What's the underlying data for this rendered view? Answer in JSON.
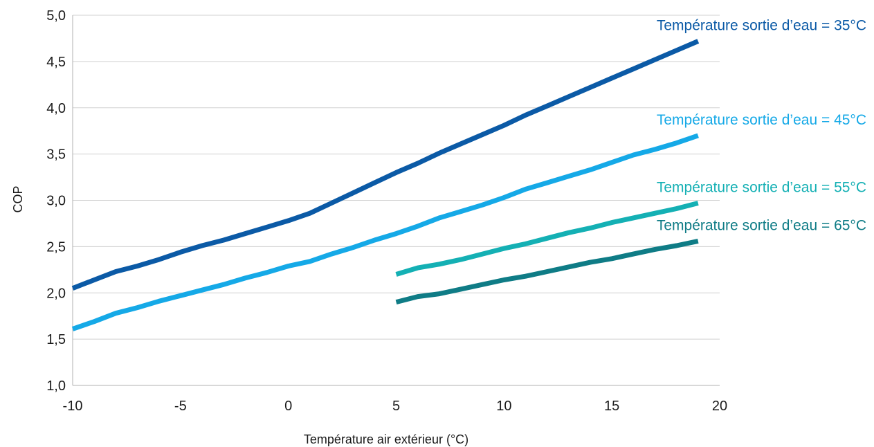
{
  "chart_data": {
    "type": "line",
    "title": "",
    "xlabel": "Température air extérieur (°C)",
    "ylabel": "COP",
    "xlim": [
      -10,
      20
    ],
    "ylim": [
      1.0,
      5.0
    ],
    "grid": "horizontal",
    "x_ticks": [
      "-10",
      "-5",
      "0",
      "5",
      "10",
      "15",
      "20"
    ],
    "y_ticks": [
      "1,0",
      "1,5",
      "2,0",
      "2,5",
      "3,0",
      "3,5",
      "4,0",
      "4,5",
      "5,0"
    ],
    "series": [
      {
        "name": "Température sortie d’eau = 35°C",
        "color": "#0b5aa6",
        "points": [
          [
            -10,
            2.05
          ],
          [
            -9,
            2.14
          ],
          [
            -8,
            2.23
          ],
          [
            -7,
            2.29
          ],
          [
            -6,
            2.36
          ],
          [
            -5,
            2.44
          ],
          [
            -4,
            2.51
          ],
          [
            -3,
            2.57
          ],
          [
            -2,
            2.64
          ],
          [
            -1,
            2.71
          ],
          [
            0,
            2.78
          ],
          [
            1,
            2.86
          ],
          [
            2,
            2.97
          ],
          [
            3,
            3.08
          ],
          [
            4,
            3.19
          ],
          [
            5,
            3.3
          ],
          [
            6,
            3.4
          ],
          [
            7,
            3.51
          ],
          [
            8,
            3.61
          ],
          [
            9,
            3.71
          ],
          [
            10,
            3.81
          ],
          [
            11,
            3.92
          ],
          [
            12,
            4.02
          ],
          [
            13,
            4.12
          ],
          [
            14,
            4.22
          ],
          [
            15,
            4.32
          ],
          [
            16,
            4.42
          ],
          [
            17,
            4.52
          ],
          [
            18,
            4.62
          ],
          [
            19,
            4.72
          ]
        ]
      },
      {
        "name": "Température sortie d’eau = 45°C",
        "color": "#15a9e7",
        "points": [
          [
            -10,
            1.61
          ],
          [
            -9,
            1.69
          ],
          [
            -8,
            1.78
          ],
          [
            -7,
            1.84
          ],
          [
            -6,
            1.91
          ],
          [
            -5,
            1.97
          ],
          [
            -4,
            2.03
          ],
          [
            -3,
            2.09
          ],
          [
            -2,
            2.16
          ],
          [
            -1,
            2.22
          ],
          [
            0,
            2.29
          ],
          [
            1,
            2.34
          ],
          [
            2,
            2.42
          ],
          [
            3,
            2.49
          ],
          [
            4,
            2.57
          ],
          [
            5,
            2.64
          ],
          [
            6,
            2.72
          ],
          [
            7,
            2.81
          ],
          [
            8,
            2.88
          ],
          [
            9,
            2.95
          ],
          [
            10,
            3.03
          ],
          [
            11,
            3.12
          ],
          [
            12,
            3.19
          ],
          [
            13,
            3.26
          ],
          [
            14,
            3.33
          ],
          [
            15,
            3.41
          ],
          [
            16,
            3.49
          ],
          [
            17,
            3.55
          ],
          [
            18,
            3.62
          ],
          [
            19,
            3.7
          ]
        ]
      },
      {
        "name": "Température sortie d’eau = 55°C",
        "color": "#14b0b4",
        "points": [
          [
            5,
            2.2
          ],
          [
            6,
            2.27
          ],
          [
            7,
            2.31
          ],
          [
            8,
            2.36
          ],
          [
            9,
            2.42
          ],
          [
            10,
            2.48
          ],
          [
            11,
            2.53
          ],
          [
            12,
            2.59
          ],
          [
            13,
            2.65
          ],
          [
            14,
            2.7
          ],
          [
            15,
            2.76
          ],
          [
            16,
            2.81
          ],
          [
            17,
            2.86
          ],
          [
            18,
            2.91
          ],
          [
            19,
            2.97
          ]
        ]
      },
      {
        "name": "Température sortie d’eau = 65°C",
        "color": "#0f7c86",
        "points": [
          [
            5,
            1.9
          ],
          [
            6,
            1.96
          ],
          [
            7,
            1.99
          ],
          [
            8,
            2.04
          ],
          [
            9,
            2.09
          ],
          [
            10,
            2.14
          ],
          [
            11,
            2.18
          ],
          [
            12,
            2.23
          ],
          [
            13,
            2.28
          ],
          [
            14,
            2.33
          ],
          [
            15,
            2.37
          ],
          [
            16,
            2.42
          ],
          [
            17,
            2.47
          ],
          [
            18,
            2.51
          ],
          [
            19,
            2.56
          ]
        ]
      }
    ]
  }
}
